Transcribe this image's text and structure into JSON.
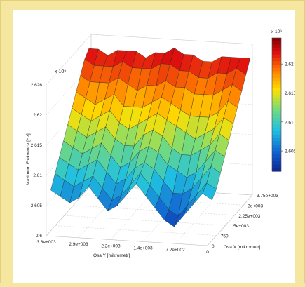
{
  "chart_data": {
    "type": "surface3d",
    "title": "",
    "zlabel": "Maximum Frekvence [Hz]",
    "xlabel": "Osa X [mikrometr]",
    "ylabel": "Osa Y [mikrometr]",
    "zlim": [
      2.6,
      2.626
    ],
    "z_scale_label": "x 10⁹",
    "z_ticks": [
      "2.6",
      "2.605",
      "2.61",
      "2.615",
      "2.62",
      "2.626"
    ],
    "x_ticks": [
      "0",
      "750",
      "1.5e+003",
      "2.25e+003",
      "3e+003",
      "3.75e+003"
    ],
    "y_ticks": [
      "3.6e+003",
      "2.9e+003",
      "2.2e+003",
      "1.4e+003",
      "7.2e+002",
      "0"
    ],
    "colorbar": {
      "scale_label": "x 10⁹",
      "ticks": [
        "2.62",
        "2.615",
        "2.61",
        "2.605"
      ],
      "colors": [
        "#8b0000",
        "#e01010",
        "#ff7a00",
        "#ffe000",
        "#90e060",
        "#20c0e0",
        "#1060d0",
        "#10208c"
      ]
    },
    "grid": true,
    "surface_rows": [
      [
        2.607,
        2.606,
        2.605,
        2.606,
        2.608,
        2.606,
        2.604,
        2.605,
        2.607,
        2.609,
        2.607,
        2.605,
        2.603,
        2.602,
        2.604,
        2.606,
        2.608,
        2.607
      ],
      [
        2.609,
        2.608,
        2.607,
        2.608,
        2.609,
        2.607,
        2.605,
        2.606,
        2.608,
        2.61,
        2.608,
        2.606,
        2.604,
        2.603,
        2.605,
        2.607,
        2.609,
        2.608
      ],
      [
        2.611,
        2.61,
        2.609,
        2.61,
        2.611,
        2.609,
        2.607,
        2.608,
        2.61,
        2.611,
        2.61,
        2.608,
        2.606,
        2.606,
        2.607,
        2.609,
        2.611,
        2.61
      ],
      [
        2.613,
        2.612,
        2.611,
        2.612,
        2.613,
        2.611,
        2.609,
        2.61,
        2.612,
        2.613,
        2.612,
        2.61,
        2.609,
        2.608,
        2.609,
        2.611,
        2.613,
        2.612
      ],
      [
        2.615,
        2.614,
        2.613,
        2.614,
        2.615,
        2.613,
        2.612,
        2.612,
        2.614,
        2.615,
        2.614,
        2.612,
        2.611,
        2.611,
        2.612,
        2.613,
        2.615,
        2.614
      ],
      [
        2.617,
        2.616,
        2.615,
        2.616,
        2.617,
        2.615,
        2.614,
        2.615,
        2.616,
        2.617,
        2.616,
        2.615,
        2.614,
        2.613,
        2.614,
        2.615,
        2.617,
        2.616
      ],
      [
        2.619,
        2.618,
        2.617,
        2.618,
        2.619,
        2.617,
        2.617,
        2.617,
        2.618,
        2.619,
        2.618,
        2.617,
        2.616,
        2.616,
        2.616,
        2.617,
        2.619,
        2.618
      ],
      [
        2.621,
        2.62,
        2.62,
        2.62,
        2.621,
        2.62,
        2.619,
        2.62,
        2.62,
        2.621,
        2.62,
        2.62,
        2.619,
        2.619,
        2.619,
        2.62,
        2.621,
        2.62
      ],
      [
        2.623,
        2.622,
        2.622,
        2.622,
        2.623,
        2.622,
        2.622,
        2.622,
        2.623,
        2.623,
        2.622,
        2.622,
        2.621,
        2.621,
        2.622,
        2.622,
        2.623,
        2.622
      ],
      [
        2.624,
        2.624,
        2.623,
        2.624,
        2.624,
        2.624,
        2.623,
        2.624,
        2.624,
        2.625,
        2.624,
        2.624,
        2.623,
        2.623,
        2.624,
        2.624,
        2.624,
        2.624
      ]
    ]
  }
}
